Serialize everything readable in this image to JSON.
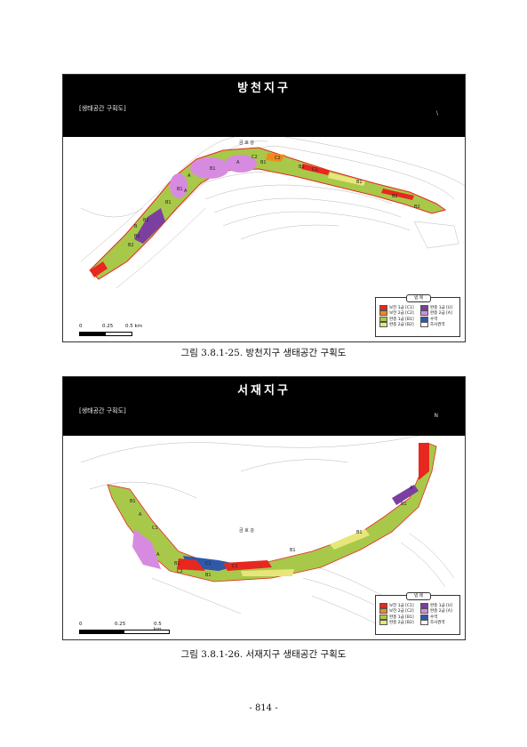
{
  "figures": [
    {
      "title": "방천지구",
      "subtitle": "[생태공간 구획도]",
      "header_mark": "\\",
      "river_label": "금 호 강",
      "zones": [
        "B1",
        "A",
        "C2",
        "A",
        "B1",
        "A",
        "C2",
        "B1",
        "B1",
        "B1",
        "B1",
        "B1",
        "C1",
        "B1",
        "B2",
        "B",
        "B2",
        "B2"
      ],
      "scale": [
        "0",
        "0.25",
        "0.5 km"
      ],
      "caption": "그림 3.8.1-25. 방천지구 생태공간 구획도"
    },
    {
      "title": "서재지구",
      "subtitle": "[생태공간 구획도]",
      "header_mark": "N",
      "river_label": "금 호 강",
      "zones": [
        "B1",
        "A",
        "C1",
        "A",
        "B1",
        "C2",
        "C1",
        "C1",
        "B1",
        "B1",
        "B1",
        "B1",
        "A"
      ],
      "scale": [
        "0",
        "0.25",
        "0.5 km"
      ],
      "caption": "그림 3.8.1-26. 서재지구 생태공간 구획도"
    }
  ],
  "legend": {
    "title": "범 례",
    "items": [
      {
        "label": "보전 1급 [C1]",
        "color": "#e8281e"
      },
      {
        "label": "완충 1급 [U]",
        "color": "#7a3fa0"
      },
      {
        "label": "보전 2급 [C2]",
        "color": "#f08a1e"
      },
      {
        "label": "완충 2급 [A]",
        "color": "#d78be0"
      },
      {
        "label": "완충 1급 [B1]",
        "color": "#a8c84a"
      },
      {
        "label": "수역",
        "color": "#2f58a8"
      },
      {
        "label": "완충 2급 [B2]",
        "color": "#e6e67a"
      },
      {
        "label": "조사권역",
        "color": "#ffffff"
      }
    ]
  },
  "page_number": "- 814 -"
}
